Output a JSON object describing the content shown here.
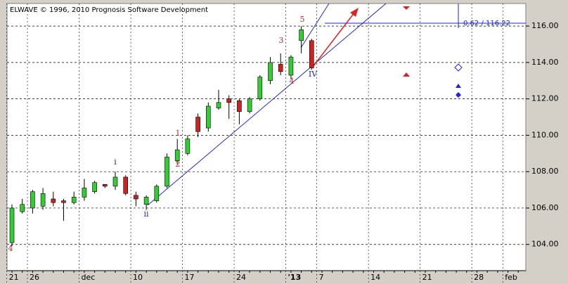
{
  "chart_data": {
    "type": "candlestick",
    "title": "ELWAVE © 1996, 2010 Prognosis Software Development",
    "categories": [
      "21",
      null,
      "26",
      null,
      null,
      null,
      null,
      "dec",
      null,
      null,
      null,
      null,
      "10",
      null,
      null,
      null,
      null,
      "17",
      null,
      null,
      null,
      null,
      "24",
      null,
      null,
      null,
      null,
      "'13",
      null,
      null,
      "7",
      null,
      null,
      null,
      null,
      "14",
      null,
      null,
      null,
      null,
      "21",
      null,
      null,
      null,
      null,
      "28",
      null,
      null,
      "feb",
      null
    ],
    "open": [
      104.1,
      105.8,
      106.0,
      106.1,
      106.5,
      106.4,
      106.3,
      106.6,
      106.9,
      107.3,
      107.2,
      107.7,
      106.7,
      106.2,
      106.4,
      107.2,
      108.6,
      109.0,
      111.0,
      110.4,
      111.5,
      112.0,
      111.9,
      111.3,
      112.0,
      113.0,
      113.9,
      113.3,
      115.2,
      115.2,
      null,
      null,
      null,
      null,
      null,
      null,
      null,
      null,
      null,
      null,
      null,
      null,
      null,
      null,
      null,
      null,
      null,
      null,
      null,
      null
    ],
    "high": [
      106.2,
      106.5,
      107.0,
      107.1,
      106.9,
      106.5,
      106.9,
      107.6,
      107.5,
      107.3,
      108.0,
      107.8,
      106.9,
      106.7,
      107.3,
      109.0,
      109.8,
      110.0,
      111.2,
      111.8,
      112.5,
      112.2,
      112.0,
      112.1,
      113.3,
      114.3,
      114.5,
      114.4,
      116.0,
      115.3,
      null,
      null,
      null,
      null,
      null,
      null,
      null,
      null,
      null,
      null,
      null,
      null,
      null,
      null,
      null,
      null,
      null,
      null,
      null,
      null
    ],
    "low": [
      103.9,
      105.7,
      105.7,
      105.9,
      106.1,
      105.3,
      106.2,
      106.4,
      106.8,
      107.1,
      107.0,
      106.7,
      106.1,
      105.9,
      106.3,
      107.1,
      108.4,
      108.9,
      109.9,
      110.2,
      111.4,
      110.9,
      110.6,
      111.2,
      111.9,
      112.8,
      113.3,
      113.1,
      114.5,
      113.6,
      null,
      null,
      null,
      null,
      null,
      null,
      null,
      null,
      null,
      null,
      null,
      null,
      null,
      null,
      null,
      null,
      null,
      null,
      null,
      null
    ],
    "close": [
      106.0,
      106.2,
      106.9,
      106.8,
      106.3,
      106.3,
      106.6,
      107.1,
      107.4,
      107.2,
      107.7,
      106.8,
      106.5,
      106.6,
      107.2,
      108.8,
      109.2,
      109.8,
      110.2,
      111.6,
      111.8,
      111.8,
      111.3,
      112.0,
      113.2,
      114.0,
      113.5,
      114.3,
      115.8,
      113.7,
      null,
      null,
      null,
      null,
      null,
      null,
      null,
      null,
      null,
      null,
      null,
      null,
      null,
      null,
      null,
      null,
      null,
      null,
      null,
      null
    ],
    "up_color": "#33cc33",
    "down_color": "#cc2222",
    "ylim": [
      102.56,
      117.24
    ],
    "yticks": [
      {
        "value": 104,
        "label": "104.00"
      },
      {
        "value": 106,
        "label": "106.00"
      },
      {
        "value": 108,
        "label": "108.00"
      },
      {
        "value": 110,
        "label": "110.00"
      },
      {
        "value": 112,
        "label": "112.00"
      },
      {
        "value": 114,
        "label": "114.00"
      },
      {
        "value": 116,
        "label": "116.00"
      }
    ],
    "grid": true,
    "annotations": [
      "4",
      "i",
      "ii",
      "1",
      "2",
      "3",
      "4",
      "5",
      "IV",
      "0.62 / 116.22"
    ]
  }
}
